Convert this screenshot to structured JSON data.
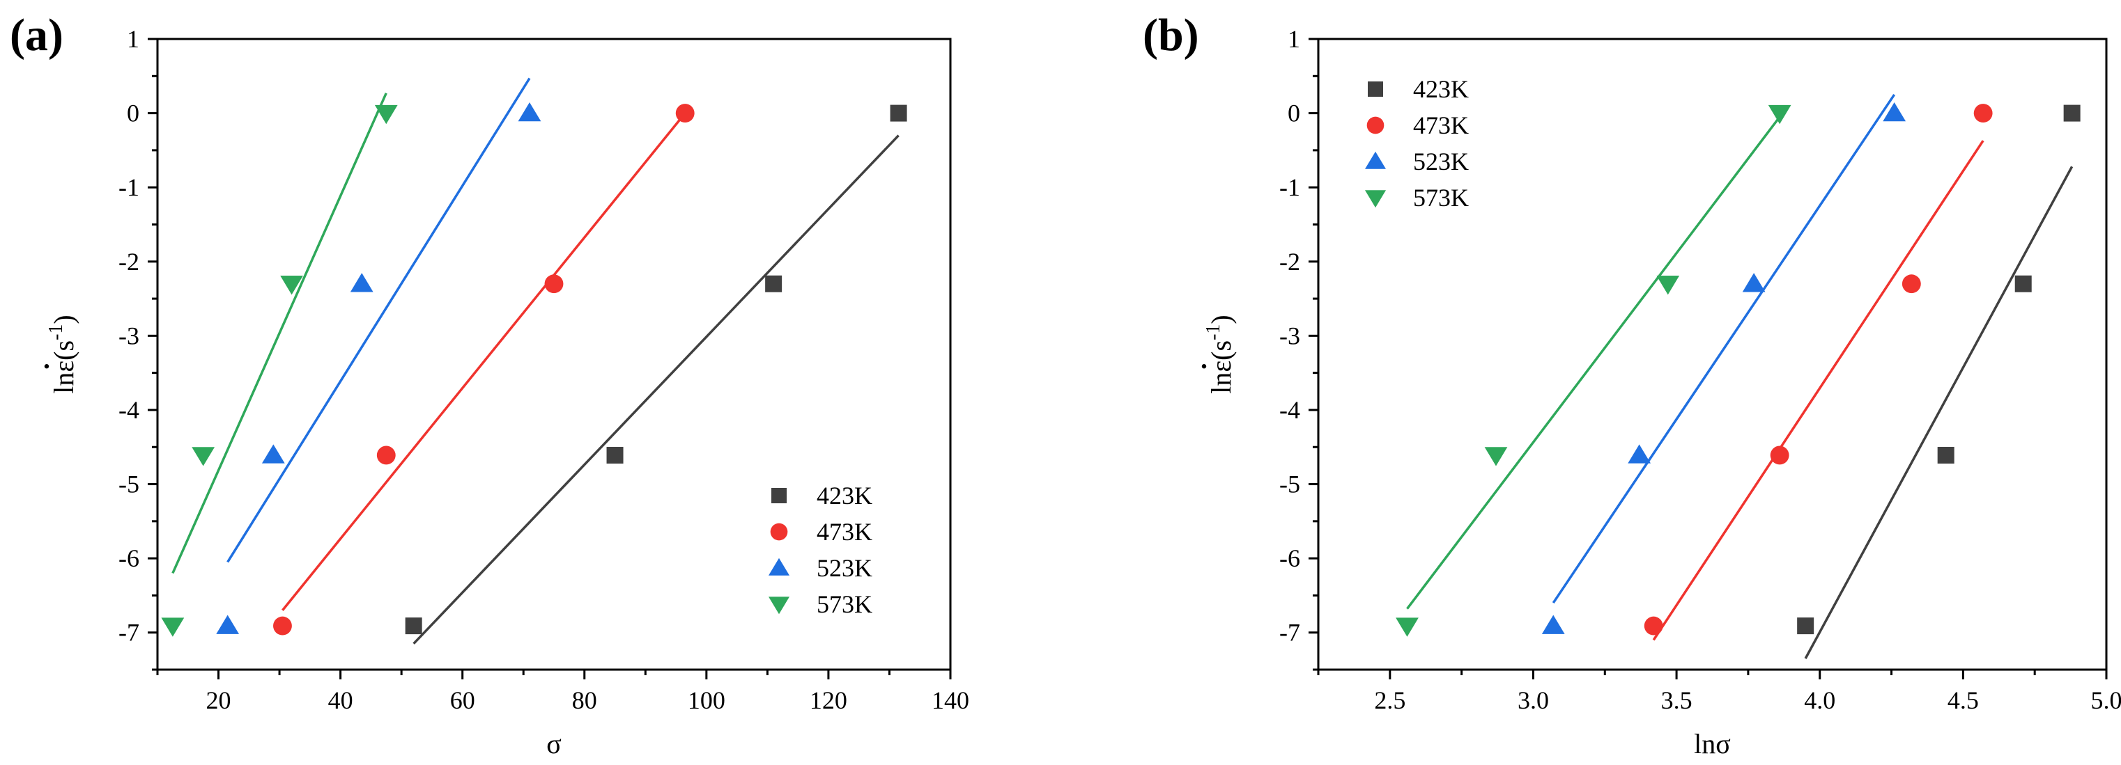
{
  "figure": {
    "panels": [
      {
        "label": "(a)"
      },
      {
        "label": "(b)"
      }
    ]
  },
  "chart_data": [
    {
      "type": "scatter",
      "panel": "(a)",
      "xlabel": "σ",
      "ylabel_main": "lnε",
      "ylabel_unit": "(s",
      "ylabel_exp": "-1",
      "ylabel_close": ")",
      "xlim": [
        10,
        140
      ],
      "ylim": [
        -7.5,
        1
      ],
      "xticks": [
        20,
        40,
        60,
        80,
        100,
        120,
        140
      ],
      "xtick_labels": [
        "20",
        "40",
        "60",
        "80",
        "100",
        "120",
        "140"
      ],
      "yticks": [
        1,
        0,
        -1,
        -2,
        -3,
        -4,
        -5,
        -6,
        -7
      ],
      "ytick_labels": [
        "1",
        "0",
        "-1",
        "-2",
        "-3",
        "-4",
        "-5",
        "-6",
        "-7"
      ],
      "legend_position": "bottom-right",
      "series": [
        {
          "name": "423K",
          "marker": "square",
          "color": "#404040",
          "x": [
            52,
            85,
            111,
            131.5
          ],
          "y": [
            -6.91,
            -4.61,
            -2.3,
            0
          ],
          "fit": {
            "x": [
              52,
              131.5
            ],
            "y": [
              -7.15,
              -0.3
            ]
          }
        },
        {
          "name": "473K",
          "marker": "circle",
          "color": "#f0332e",
          "x": [
            30.5,
            47.5,
            75,
            96.5
          ],
          "y": [
            -6.91,
            -4.61,
            -2.3,
            0
          ],
          "fit": {
            "x": [
              30.5,
              96.5
            ],
            "y": [
              -6.7,
              0
            ]
          }
        },
        {
          "name": "523K",
          "marker": "triangle-up",
          "color": "#1f6fe0",
          "x": [
            21.5,
            29,
            43.5,
            71
          ],
          "y": [
            -6.91,
            -4.61,
            -2.3,
            0
          ],
          "fit": {
            "x": [
              21.5,
              71
            ],
            "y": [
              -6.05,
              0.47
            ]
          }
        },
        {
          "name": "573K",
          "marker": "triangle-down",
          "color": "#2ea85a",
          "x": [
            12.5,
            17.5,
            32,
            47.5
          ],
          "y": [
            -6.91,
            -4.61,
            -2.3,
            0
          ],
          "fit": {
            "x": [
              12.5,
              47.5
            ],
            "y": [
              -6.2,
              0.27
            ]
          }
        }
      ]
    },
    {
      "type": "scatter",
      "panel": "(b)",
      "xlabel": "lnσ",
      "ylabel_main": "lnε",
      "ylabel_unit": "(s",
      "ylabel_exp": "-1",
      "ylabel_close": ")",
      "xlim": [
        2.25,
        5.0
      ],
      "ylim": [
        -7.5,
        1
      ],
      "xticks": [
        2.5,
        3.0,
        3.5,
        4.0,
        4.5,
        5.0
      ],
      "xtick_labels": [
        "2.5",
        "3.0",
        "3.5",
        "4.0",
        "4.5",
        "5.0"
      ],
      "yticks": [
        1,
        0,
        -1,
        -2,
        -3,
        -4,
        -5,
        -6,
        -7
      ],
      "ytick_labels": [
        "1",
        "0",
        "-1",
        "-2",
        "-3",
        "-4",
        "-5",
        "-6",
        "-7"
      ],
      "legend_position": "top-left",
      "series": [
        {
          "name": "423K",
          "marker": "square",
          "color": "#404040",
          "x": [
            3.95,
            4.44,
            4.71,
            4.88
          ],
          "y": [
            -6.91,
            -4.61,
            -2.3,
            0
          ],
          "fit": {
            "x": [
              3.95,
              4.88
            ],
            "y": [
              -7.35,
              -0.72
            ]
          }
        },
        {
          "name": "473K",
          "marker": "circle",
          "color": "#f0332e",
          "x": [
            3.42,
            3.86,
            4.32,
            4.57
          ],
          "y": [
            -6.91,
            -4.61,
            -2.3,
            0
          ],
          "fit": {
            "x": [
              3.42,
              4.57
            ],
            "y": [
              -7.1,
              -0.37
            ]
          }
        },
        {
          "name": "523K",
          "marker": "triangle-up",
          "color": "#1f6fe0",
          "x": [
            3.07,
            3.37,
            3.77,
            4.26
          ],
          "y": [
            -6.91,
            -4.61,
            -2.3,
            0
          ],
          "fit": {
            "x": [
              3.07,
              4.26
            ],
            "y": [
              -6.6,
              0.25
            ]
          }
        },
        {
          "name": "573K",
          "marker": "triangle-down",
          "color": "#2ea85a",
          "x": [
            2.56,
            2.87,
            3.47,
            3.86
          ],
          "y": [
            -6.91,
            -4.61,
            -2.3,
            0
          ],
          "fit": {
            "x": [
              2.56,
              3.86
            ],
            "y": [
              -6.68,
              -0.05
            ]
          }
        }
      ]
    }
  ]
}
